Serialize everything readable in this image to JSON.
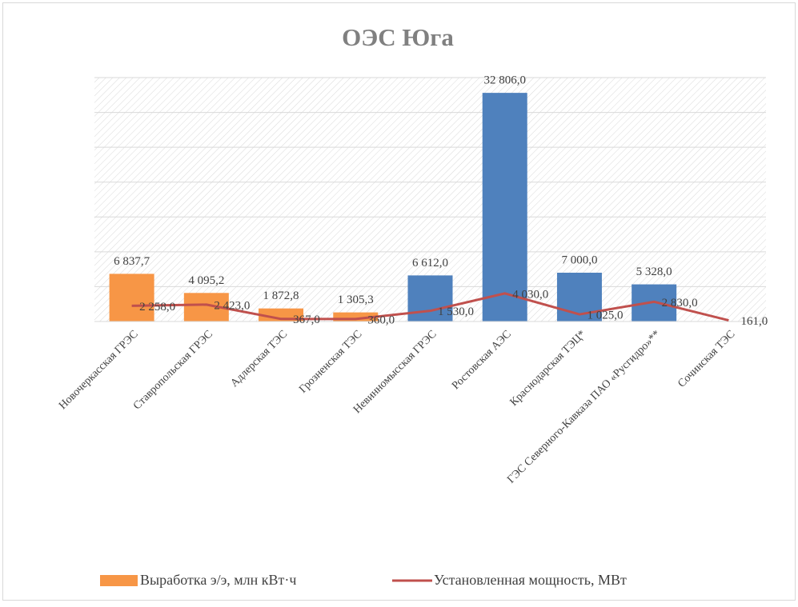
{
  "chart_data": {
    "type": "bar_line",
    "title": "ОЭС Юга",
    "categories": [
      "Новочеркасская ГРЭС",
      "Ставропольская ГРЭС",
      "Адлерская ТЭС",
      "Грозненская ТЭС",
      "Невинномысская ГРЭС",
      "Ростовская АЭС",
      "Краснодарская ТЭЦ*",
      "ГЭС Северного-Кавказа ПАО «Русгидро»**",
      "Сочинская ТЭС"
    ],
    "series": [
      {
        "name": "Выработка э/э, млн кВт·ч",
        "type": "bar",
        "color": "#f79646",
        "colors": [
          "#f79646",
          "#f79646",
          "#f79646",
          "#f79646",
          "#4f81bd",
          "#4f81bd",
          "#4f81bd",
          "#4f81bd",
          "#4f81bd"
        ],
        "values": [
          6837.7,
          4095.2,
          1872.8,
          1305.3,
          6612.0,
          32806.0,
          7000.0,
          5328.0,
          null
        ],
        "value_labels": [
          "6 837,7",
          "4 095,2",
          "1 872,8",
          "1 305,3",
          "6 612,0",
          "32 806,0",
          "7 000,0",
          "5 328,0",
          null
        ]
      },
      {
        "name": "Установленная мощность, МВт",
        "type": "line",
        "color": "#c0504d",
        "values": [
          2258.0,
          2423.0,
          367.0,
          360.0,
          1530.0,
          4030.0,
          1025.0,
          2830.0,
          161.0
        ],
        "value_labels": [
          "2 258,0",
          "2 423,0",
          "367,0",
          "360,0",
          "1 530,0",
          "4 030,0",
          "1 025,0",
          "2 830,0",
          "161,0"
        ]
      }
    ],
    "ylim": [
      0,
      35000
    ],
    "yticks": [
      0,
      5000,
      10000,
      15000,
      20000,
      25000,
      30000,
      35000
    ],
    "grid": true
  }
}
